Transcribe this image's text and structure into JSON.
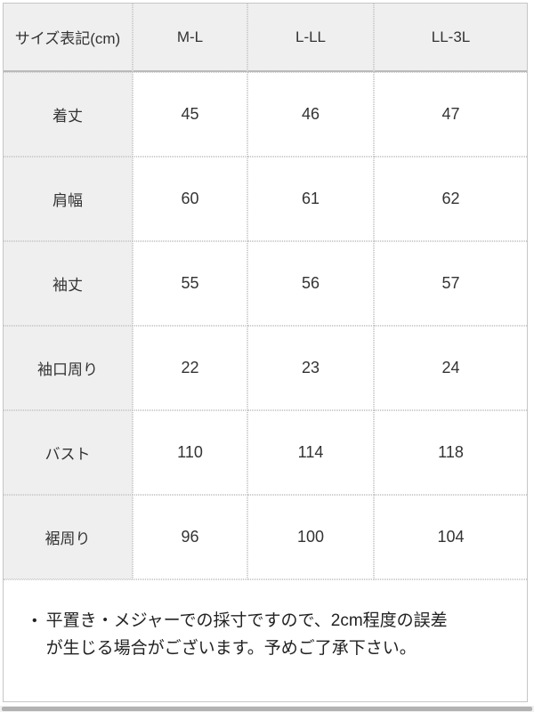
{
  "table": {
    "header": [
      "サイズ表記(cm)",
      "M-L",
      "L-LL",
      "LL-3L"
    ],
    "rows": [
      {
        "label": "着丈",
        "values": [
          "45",
          "46",
          "47"
        ]
      },
      {
        "label": "肩幅",
        "values": [
          "60",
          "61",
          "62"
        ]
      },
      {
        "label": "袖丈",
        "values": [
          "55",
          "56",
          "57"
        ]
      },
      {
        "label": "袖口周り",
        "values": [
          "22",
          "23",
          "24"
        ]
      },
      {
        "label": "バスト",
        "values": [
          "110",
          "114",
          "118"
        ]
      },
      {
        "label": "裾周り",
        "values": [
          "96",
          "100",
          "104"
        ]
      }
    ]
  },
  "note": {
    "bullet": "•",
    "text": "平置き・メジャーでの採寸ですので、2cm程度の誤差が生じる場合がございます。予めご了承下さい。"
  },
  "colors": {
    "header_bg": "#efefef",
    "dotted_border": "#cccccc",
    "solid_border": "#c6c6c6",
    "header_underline": "#b9b9b9",
    "text": "#333333",
    "scrollbar_track": "#f1f1f1",
    "scrollbar_thumb": "#b2b2b2"
  },
  "chart_data": {
    "type": "table",
    "title": "サイズ表記(cm)",
    "columns": [
      "サイズ表記(cm)",
      "M-L",
      "L-LL",
      "LL-3L"
    ],
    "rows": [
      [
        "着丈",
        45,
        46,
        47
      ],
      [
        "肩幅",
        60,
        61,
        62
      ],
      [
        "袖丈",
        55,
        56,
        57
      ],
      [
        "袖口周り",
        22,
        23,
        24
      ],
      [
        "バスト",
        110,
        114,
        118
      ],
      [
        "裾周り",
        96,
        100,
        104
      ]
    ]
  }
}
